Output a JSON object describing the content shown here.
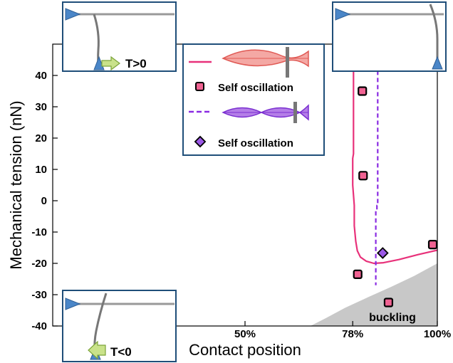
{
  "chart_data": {
    "type": "scatter",
    "xlabel": "Contact position",
    "ylabel": "Mechanical tension (nN)",
    "xlim": [
      0,
      100
    ],
    "ylim": [
      -40,
      50
    ],
    "x_tick_labels": [
      "50%",
      "78%",
      "100%"
    ],
    "x_tick_values": [
      50,
      78,
      100
    ],
    "y_ticks": [
      -40,
      -30,
      -20,
      -10,
      0,
      10,
      20,
      30,
      40
    ],
    "y_tick_labels": [
      "-40",
      "-30",
      "-20",
      "-10",
      "0",
      "10",
      "20",
      "30",
      "40"
    ],
    "series": [
      {
        "kind": "line",
        "style": "solid",
        "color": "#e8317a",
        "x": [
          78.2,
          78.2,
          78.0,
          78.0,
          78.4,
          78.4,
          78.8,
          79.2,
          80.0,
          81.5,
          83.5,
          86.0,
          90.0,
          95.0,
          100.0
        ],
        "y": [
          41.5,
          15.0,
          13.5,
          5.0,
          -1.5,
          -8.0,
          -13.0,
          -16.0,
          -18.0,
          -19.3,
          -20.0,
          -19.8,
          -18.8,
          -17.2,
          -15.8
        ]
      },
      {
        "kind": "line",
        "style": "dashed",
        "color": "#8a2be2",
        "x": [
          84.5,
          84.5,
          84.3,
          84.3,
          84.0,
          84.0
        ],
        "y": [
          41.5,
          -1.5,
          -1.5,
          -3.0,
          -3.0,
          -27.0
        ]
      },
      {
        "kind": "points",
        "marker": "square",
        "label": "Self oscillation",
        "color": "#f06292",
        "x": [
          80.5,
          80.7,
          79.3,
          87.3,
          98.8
        ],
        "y": [
          35.0,
          8.0,
          -23.5,
          -32.5,
          -14.0
        ]
      },
      {
        "kind": "points",
        "marker": "diamond",
        "label": "Self oscillation",
        "color": "#9b59e6",
        "x": [
          85.8
        ],
        "y": [
          -16.7
        ]
      }
    ],
    "regions": [
      {
        "label": "buckling",
        "color": "#c8c8c8",
        "boundary_x": [
          67,
          71,
          76,
          82,
          88,
          94,
          100
        ],
        "boundary_y": [
          -40,
          -37.5,
          -34.2,
          -30.8,
          -27.5,
          -24.0,
          -20.0
        ]
      }
    ],
    "legend": {
      "placement": "top-center",
      "entries": [
        {
          "marker": "line-solid",
          "color": "#e8317a",
          "label": ""
        },
        {
          "marker": "square",
          "color": "#f06292",
          "label": "Self oscillation"
        },
        {
          "marker": "line-dashed",
          "color": "#8a2be2",
          "label": ""
        },
        {
          "marker": "diamond",
          "color": "#9b59e6",
          "label": "Self oscillation"
        }
      ]
    },
    "insets": [
      {
        "placement": "top-left",
        "label": "T>0"
      },
      {
        "placement": "top-right",
        "label": ""
      },
      {
        "placement": "bottom-left",
        "label": "T<0"
      }
    ]
  }
}
